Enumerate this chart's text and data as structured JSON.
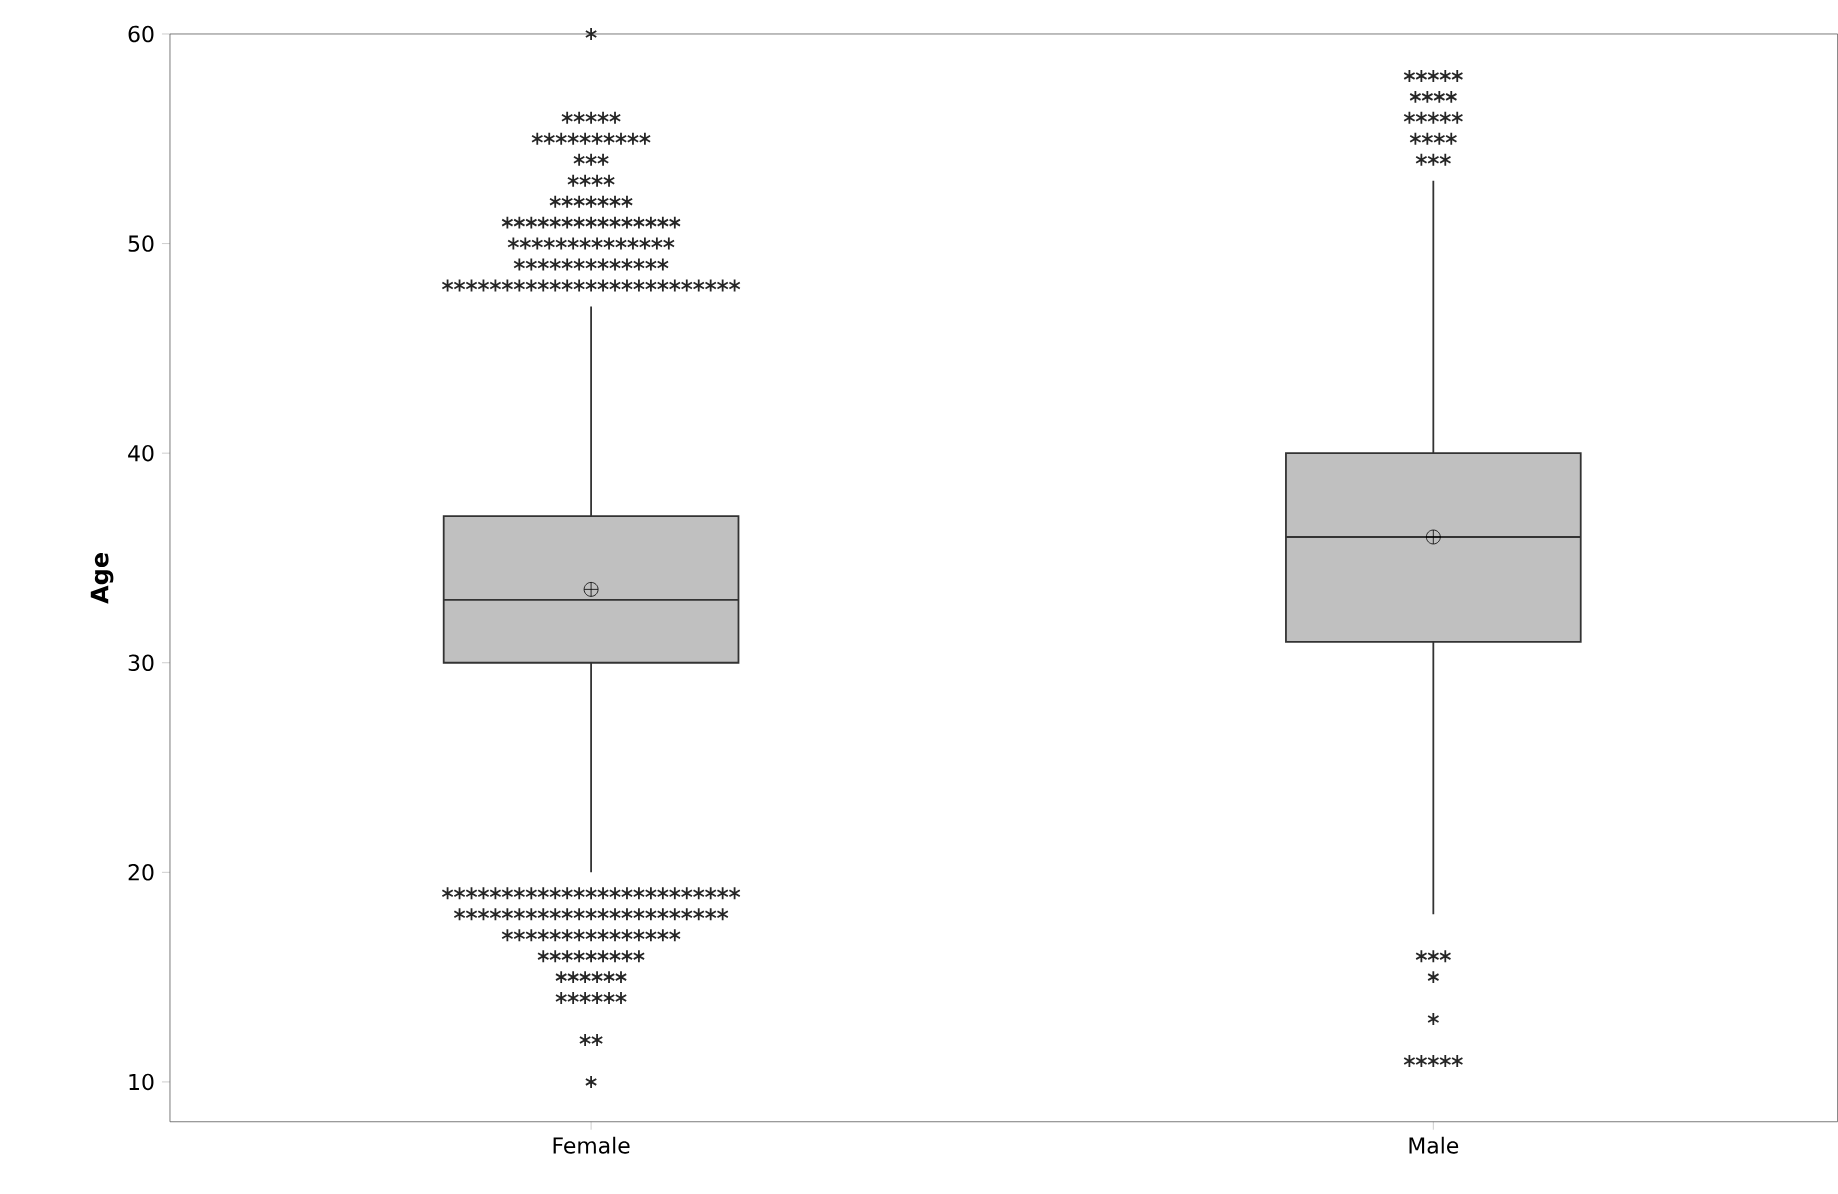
{
  "chart_data": {
    "type": "box",
    "ylabel": "Age",
    "categories": [
      "Female",
      "Male"
    ],
    "color": "#c0c0c0",
    "ylim": [
      8.1,
      60
    ],
    "yticks": [
      10,
      20,
      30,
      40,
      50,
      60
    ],
    "boxes": [
      {
        "low": 20,
        "q1": 30,
        "median": 33,
        "q3": 37,
        "high": 47,
        "mean": 33.5,
        "outliers": [
          60,
          56,
          56,
          56,
          56,
          56,
          55,
          55,
          55,
          55,
          55,
          55,
          55,
          55,
          55,
          55,
          54,
          54,
          54,
          53,
          53,
          53,
          53,
          52,
          52,
          52,
          52,
          52,
          52,
          52,
          51,
          51,
          51,
          51,
          51,
          51,
          51,
          51,
          51,
          51,
          51,
          51,
          51,
          51,
          51,
          50,
          50,
          50,
          50,
          50,
          50,
          50,
          50,
          50,
          50,
          50,
          50,
          50,
          50,
          49,
          49,
          49,
          49,
          49,
          49,
          49,
          49,
          49,
          49,
          49,
          49,
          49,
          48,
          48,
          48,
          48,
          48,
          48,
          48,
          48,
          48,
          48,
          48,
          48,
          48,
          48,
          48,
          48,
          48,
          48,
          48,
          48,
          48,
          48,
          48,
          48,
          48,
          19,
          19,
          19,
          19,
          19,
          19,
          19,
          19,
          19,
          19,
          19,
          19,
          19,
          19,
          19,
          19,
          19,
          19,
          19,
          19,
          19,
          19,
          19,
          19,
          19,
          18,
          18,
          18,
          18,
          18,
          18,
          18,
          18,
          18,
          18,
          18,
          18,
          18,
          18,
          18,
          18,
          18,
          18,
          18,
          18,
          18,
          18,
          18,
          17,
          17,
          17,
          17,
          17,
          17,
          17,
          17,
          17,
          17,
          17,
          17,
          17,
          17,
          17,
          16,
          16,
          16,
          16,
          16,
          16,
          16,
          16,
          16,
          15,
          15,
          15,
          15,
          15,
          15,
          14,
          14,
          14,
          14,
          14,
          14,
          12,
          12,
          10
        ]
      },
      {
        "low": 18,
        "q1": 31,
        "median": 36,
        "q3": 40,
        "high": 53,
        "mean": 36,
        "outliers": [
          58,
          58,
          58,
          58,
          58,
          57,
          57,
          57,
          57,
          56,
          56,
          56,
          56,
          56,
          55,
          55,
          55,
          55,
          54,
          54,
          54,
          16,
          16,
          16,
          15,
          13,
          11,
          11,
          11,
          11,
          11
        ]
      }
    ]
  }
}
